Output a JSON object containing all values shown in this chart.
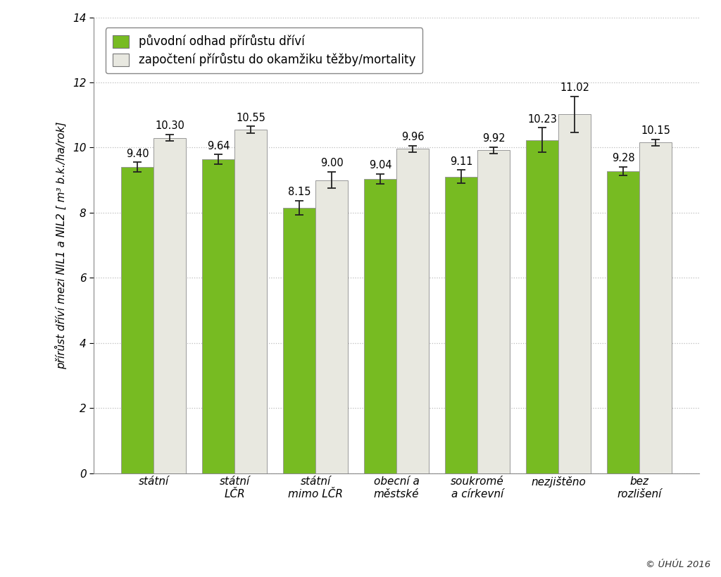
{
  "categories": [
    "státní",
    "státní\nLČR",
    "státní\nmimo LČR",
    "obecní a\nměstské",
    "soukromé\na církevní",
    "nezjištěno",
    "bez\nrozlišení"
  ],
  "green_values": [
    9.4,
    9.64,
    8.15,
    9.04,
    9.11,
    10.23,
    9.28
  ],
  "gray_values": [
    10.3,
    10.55,
    9.0,
    9.96,
    9.92,
    11.02,
    10.15
  ],
  "green_errors": [
    0.15,
    0.15,
    0.22,
    0.15,
    0.2,
    0.38,
    0.13
  ],
  "gray_errors": [
    0.1,
    0.1,
    0.25,
    0.1,
    0.1,
    0.55,
    0.1
  ],
  "green_color": "#77BB22",
  "gray_color": "#E8E8E0",
  "bar_edge_color": "#999999",
  "error_color": "#222222",
  "grid_color": "#BBBBBB",
  "background_color": "#FFFFFF",
  "ylabel": "přírůst dříví mezi NIL1 a NIL2 [ m³ b.k./ha/rok]",
  "ylim": [
    0,
    14
  ],
  "yticks": [
    0,
    2,
    4,
    6,
    8,
    10,
    12,
    14
  ],
  "legend_green": "původní odhad přírůstu dříví",
  "legend_gray": "započtení přírůstu do okamžiku těžby/mortality",
  "bar_width": 0.4,
  "value_fontsize": 10.5,
  "tick_fontsize": 11,
  "ylabel_fontsize": 11,
  "legend_fontsize": 12,
  "copyright": "© ÚHÚL 2016"
}
